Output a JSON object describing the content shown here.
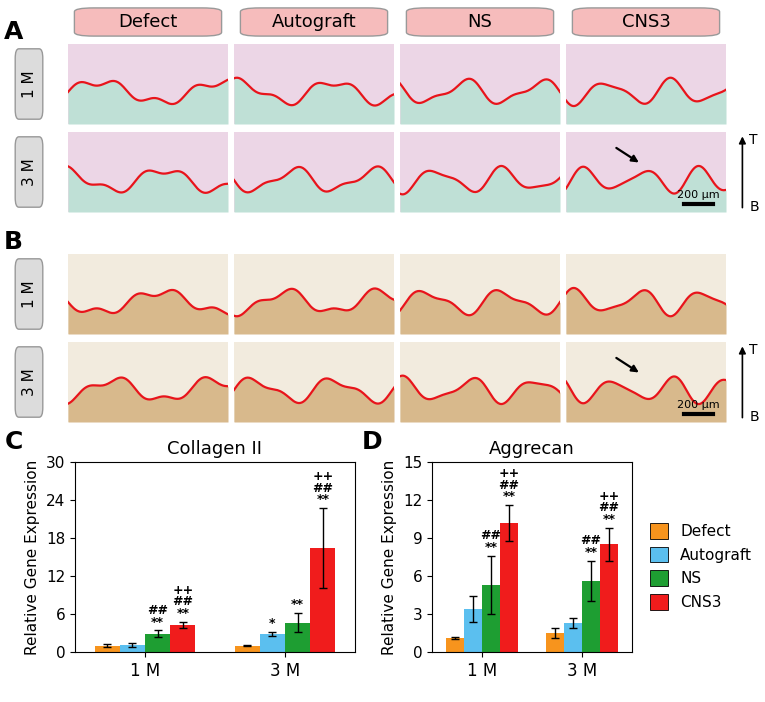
{
  "histology": {
    "panels": [
      "A",
      "B"
    ],
    "columns": [
      "Defect",
      "Autograft",
      "NS",
      "CNS3"
    ],
    "rows": [
      "1 M",
      "3 M"
    ],
    "scale_bar": "200 µm",
    "direction": [
      "T",
      "B"
    ]
  },
  "chart_data": [
    {
      "type": "bar",
      "panel_label": "C",
      "title": "Collagen II",
      "y_label": "Relative Gene Expression",
      "categories": [
        "1 M",
        "3 M"
      ],
      "ylim": [
        0,
        30
      ],
      "yticks": [
        0,
        6,
        12,
        18,
        24,
        30
      ],
      "series": [
        {
          "name": "Defect",
          "color": "#f7941d",
          "values": [
            1.0,
            1.0
          ],
          "errors": [
            0.2,
            0.1
          ],
          "annotations": [
            [],
            []
          ]
        },
        {
          "name": "Autograft",
          "color": "#5bbfef",
          "values": [
            1.1,
            2.9
          ],
          "errors": [
            0.3,
            0.3
          ],
          "annotations": [
            [],
            [
              "*"
            ]
          ]
        },
        {
          "name": "NS",
          "color": "#1e9e32",
          "values": [
            2.9,
            4.6
          ],
          "errors": [
            0.5,
            1.5
          ],
          "annotations": [
            [
              "##",
              "**"
            ],
            [
              "**"
            ]
          ]
        },
        {
          "name": "CNS3",
          "color": "#f01c1c",
          "values": [
            4.3,
            16.4
          ],
          "errors": [
            0.5,
            6.3
          ],
          "annotations": [
            [
              "++",
              "##",
              "**"
            ],
            [
              "++",
              "##",
              "**"
            ]
          ]
        }
      ]
    },
    {
      "type": "bar",
      "panel_label": "D",
      "title": "Aggrecan",
      "y_label": "Relative Gene Expression",
      "categories": [
        "1 M",
        "3 M"
      ],
      "ylim": [
        0,
        15
      ],
      "yticks": [
        0,
        3,
        6,
        9,
        12,
        15
      ],
      "legend": "right",
      "series": [
        {
          "name": "Defect",
          "color": "#f7941d",
          "values": [
            1.1,
            1.5
          ],
          "errors": [
            0.1,
            0.4
          ],
          "annotations": [
            [],
            []
          ]
        },
        {
          "name": "Autograft",
          "color": "#5bbfef",
          "values": [
            3.4,
            2.3
          ],
          "errors": [
            1.0,
            0.4
          ],
          "annotations": [
            [],
            []
          ]
        },
        {
          "name": "NS",
          "color": "#1e9e32",
          "values": [
            5.3,
            5.6
          ],
          "errors": [
            2.3,
            1.6
          ],
          "annotations": [
            [
              "##",
              "**"
            ],
            [
              "##",
              "**"
            ]
          ]
        },
        {
          "name": "CNS3",
          "color": "#f01c1c",
          "values": [
            10.2,
            8.5
          ],
          "errors": [
            1.4,
            1.3
          ],
          "annotations": [
            [
              "++",
              "##",
              "**"
            ],
            [
              "++",
              "##",
              "**"
            ]
          ]
        }
      ]
    }
  ]
}
